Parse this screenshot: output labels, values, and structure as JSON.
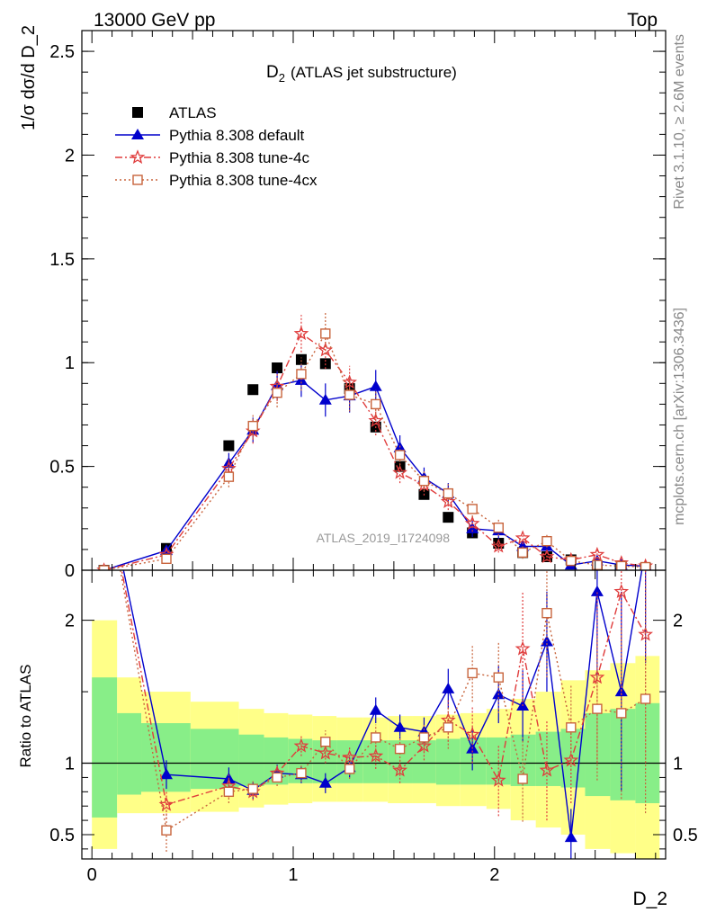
{
  "header": {
    "left": "13000 GeV pp",
    "right": "Top"
  },
  "side_labels": {
    "rivet": "Rivet 3.1.10, ≥ 2.6M events",
    "mcplots": "mcplots.cern.ch [arXiv:1306.3436]"
  },
  "colors": {
    "atlas": "#000000",
    "default": "#0000cc",
    "tune4c": "#e03c3c",
    "tune4cx": "#c8643c",
    "band_inner": "#88ee88",
    "band_outer": "#ffff88"
  },
  "chart_data": [
    {
      "type": "line",
      "panel": "main",
      "title_main": "D",
      "title_sub": "2",
      "title_rest": "(ATLAS jet substructure)",
      "ylabel": "1/σ dσ/d D_2",
      "analysis_id": "ATLAS_2019_I1724098",
      "xlim": [
        -0.05,
        2.85
      ],
      "ylim": [
        0,
        2.6
      ],
      "yticks": [
        0,
        0.5,
        1,
        1.5,
        2,
        2.5
      ],
      "ytick_labels": [
        "0",
        "0.5",
        "1",
        "1.5",
        "2",
        "2.5"
      ],
      "legend": [
        "ATLAS",
        "Pythia 8.308 default",
        "Pythia 8.308 tune-4c",
        "Pythia 8.308 tune-4cx"
      ],
      "x": [
        0.06,
        0.37,
        0.68,
        0.8,
        0.92,
        1.04,
        1.16,
        1.28,
        1.41,
        1.53,
        1.65,
        1.77,
        1.89,
        2.02,
        2.14,
        2.26,
        2.38,
        2.51,
        2.63,
        2.75
      ],
      "series": [
        {
          "name": "ATLAS",
          "marker": "square",
          "values": [
            0.0,
            0.105,
            0.6,
            0.87,
            0.975,
            1.015,
            0.995,
            0.875,
            0.69,
            0.5,
            0.365,
            0.255,
            0.18,
            0.13,
            0.085,
            0.065,
            0.05,
            0.02,
            0.015,
            0.01
          ],
          "errors": [
            0.005,
            0.01,
            0.02,
            0.02,
            0.02,
            0.02,
            0.02,
            0.02,
            0.02,
            0.02,
            0.015,
            0.01,
            0.01,
            0.01,
            0.008,
            0.006,
            0.005,
            0.004,
            0.003,
            0.003
          ]
        },
        {
          "name": "Pythia 8.308 default",
          "marker": "triangle",
          "values": [
            0.0,
            0.095,
            0.515,
            0.675,
            0.89,
            0.915,
            0.82,
            0.84,
            0.885,
            0.59,
            0.445,
            0.37,
            0.2,
            0.19,
            0.115,
            0.115,
            0.025,
            0.045,
            0.025,
            0.02
          ],
          "errors": [
            0.01,
            0.02,
            0.05,
            0.06,
            0.07,
            0.08,
            0.08,
            0.08,
            0.08,
            0.06,
            0.05,
            0.05,
            0.04,
            0.04,
            0.03,
            0.03,
            0.02,
            0.02,
            0.015,
            0.01
          ]
        },
        {
          "name": "Pythia 8.308 tune-4c",
          "marker": "star",
          "values": [
            0.0,
            0.075,
            0.49,
            0.67,
            0.885,
            1.14,
            1.06,
            0.905,
            0.72,
            0.47,
            0.41,
            0.33,
            0.225,
            0.115,
            0.155,
            0.065,
            0.05,
            0.075,
            0.035,
            0.02
          ],
          "errors": [
            0.01,
            0.02,
            0.05,
            0.06,
            0.07,
            0.09,
            0.09,
            0.08,
            0.07,
            0.05,
            0.05,
            0.04,
            0.04,
            0.03,
            0.03,
            0.02,
            0.02,
            0.02,
            0.015,
            0.01
          ]
        },
        {
          "name": "Pythia 8.308 tune-4cx",
          "marker": "open-square",
          "values": [
            0.0,
            0.055,
            0.45,
            0.695,
            0.855,
            0.945,
            1.14,
            0.845,
            0.8,
            0.555,
            0.43,
            0.37,
            0.295,
            0.205,
            0.085,
            0.14,
            0.045,
            0.025,
            0.02,
            0.015
          ],
          "errors": [
            0.01,
            0.02,
            0.05,
            0.06,
            0.07,
            0.08,
            0.1,
            0.08,
            0.07,
            0.05,
            0.05,
            0.05,
            0.04,
            0.04,
            0.03,
            0.03,
            0.02,
            0.015,
            0.01,
            0.01
          ]
        }
      ]
    },
    {
      "type": "line",
      "panel": "ratio",
      "ylabel": "Ratio to ATLAS",
      "xlabel": "D_2",
      "xlim": [
        -0.05,
        2.85
      ],
      "ylim": [
        0.33,
        2.35
      ],
      "yticks": [
        0.5,
        1,
        2
      ],
      "ytick_labels": [
        "0.5",
        "1",
        "2"
      ],
      "xticks": [
        0,
        1,
        2
      ],
      "xtick_labels": [
        "0",
        "1",
        "2"
      ],
      "x": [
        0.06,
        0.37,
        0.68,
        0.8,
        0.92,
        1.04,
        1.16,
        1.28,
        1.41,
        1.53,
        1.65,
        1.77,
        1.89,
        2.02,
        2.14,
        2.26,
        2.38,
        2.51,
        2.63,
        2.75
      ],
      "band_edges": [
        0.0,
        0.125,
        0.245,
        0.49,
        0.73,
        0.855,
        0.975,
        1.095,
        1.215,
        1.345,
        1.47,
        1.59,
        1.71,
        1.83,
        1.96,
        2.08,
        2.205,
        2.33,
        2.45,
        2.575,
        2.7,
        2.82
      ],
      "band_inner_lo": [
        0.62,
        0.78,
        0.8,
        0.82,
        0.84,
        0.85,
        0.86,
        0.86,
        0.86,
        0.86,
        0.86,
        0.86,
        0.85,
        0.85,
        0.85,
        0.84,
        0.84,
        0.83,
        0.77,
        0.74,
        0.72
      ],
      "band_inner_hi": [
        1.6,
        1.35,
        1.28,
        1.24,
        1.2,
        1.18,
        1.17,
        1.16,
        1.16,
        1.16,
        1.16,
        1.16,
        1.17,
        1.18,
        1.18,
        1.2,
        1.22,
        1.24,
        1.35,
        1.38,
        1.42
      ],
      "band_outer_lo": [
        0.4,
        0.65,
        0.65,
        0.66,
        0.69,
        0.71,
        0.72,
        0.73,
        0.73,
        0.73,
        0.72,
        0.72,
        0.7,
        0.7,
        0.68,
        0.6,
        0.55,
        0.5,
        0.4,
        0.37,
        0.33
      ],
      "band_outer_hi": [
        2.0,
        1.6,
        1.5,
        1.43,
        1.38,
        1.35,
        1.34,
        1.33,
        1.32,
        1.32,
        1.33,
        1.33,
        1.34,
        1.35,
        1.38,
        1.45,
        1.5,
        1.58,
        1.65,
        1.7,
        1.75
      ],
      "series": [
        {
          "name": "Pythia 8.308 default",
          "marker": "triangle",
          "values": [
            3.0,
            0.92,
            0.89,
            0.81,
            0.93,
            0.92,
            0.86,
            0.97,
            1.37,
            1.25,
            1.22,
            1.52,
            1.1,
            1.48,
            1.4,
            1.85,
            0.48,
            2.2,
            1.5,
            2.5
          ],
          "errors": [
            0.3,
            0.1,
            0.08,
            0.06,
            0.06,
            0.06,
            0.07,
            0.07,
            0.09,
            0.09,
            0.1,
            0.14,
            0.15,
            0.2,
            0.25,
            0.35,
            0.2,
            0.6,
            0.7,
            0.8
          ]
        },
        {
          "name": "Pythia 8.308 tune-4c",
          "marker": "star",
          "values": [
            3.0,
            0.71,
            0.84,
            0.8,
            0.93,
            1.12,
            1.07,
            1.04,
            1.05,
            0.95,
            1.12,
            1.3,
            1.2,
            0.88,
            1.8,
            0.95,
            1.02,
            1.6,
            2.2,
            1.9
          ],
          "errors": [
            0.3,
            0.1,
            0.08,
            0.06,
            0.06,
            0.07,
            0.07,
            0.07,
            0.09,
            0.09,
            0.1,
            0.15,
            0.2,
            0.25,
            0.4,
            0.35,
            0.3,
            0.6,
            0.8,
            0.9
          ]
        },
        {
          "name": "Pythia 8.308 tune-4cx",
          "marker": "open-square",
          "values": [
            3.0,
            0.53,
            0.8,
            0.82,
            0.9,
            0.93,
            1.15,
            0.96,
            1.18,
            1.1,
            1.18,
            1.25,
            1.63,
            1.6,
            0.89,
            2.05,
            1.25,
            1.38,
            1.35,
            1.45
          ],
          "errors": [
            0.3,
            0.15,
            0.08,
            0.06,
            0.06,
            0.06,
            0.08,
            0.07,
            0.09,
            0.09,
            0.1,
            0.15,
            0.2,
            0.25,
            0.3,
            0.45,
            0.3,
            0.5,
            0.6,
            0.8
          ]
        }
      ]
    }
  ]
}
